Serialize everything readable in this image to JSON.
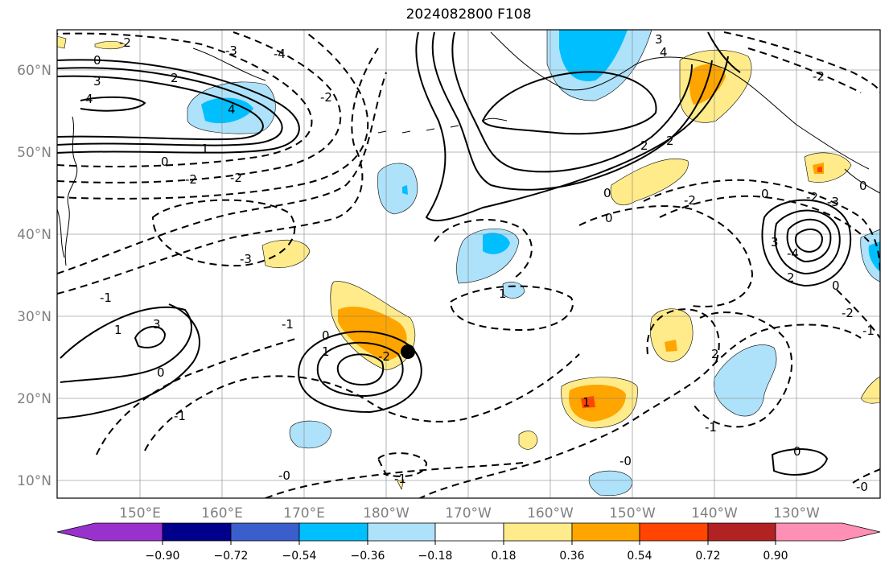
{
  "title": "2024082800 F108",
  "lat_labels": [
    "60°N",
    "50°N",
    "40°N",
    "30°N",
    "20°N",
    "10°N"
  ],
  "lon_labels": [
    "150°E",
    "160°E",
    "170°E",
    "180°W",
    "170°W",
    "160°W",
    "150°W",
    "140°W",
    "130°W"
  ],
  "colorbar": {
    "ticks": [
      "−0.90",
      "−0.72",
      "−0.54",
      "−0.36",
      "−0.18",
      "0.18",
      "0.36",
      "0.54",
      "0.72",
      "0.90"
    ],
    "colors": [
      "#9932cc",
      "#00008b",
      "#3a5fcd",
      "#00bfff",
      "#aee2fa",
      "#ffffff",
      "#ffeb8a",
      "#ffa500",
      "#ff4500",
      "#b22222",
      "#ff8fb4"
    ]
  },
  "contour_labels": [
    "-3",
    "-4",
    "-2",
    "0",
    "3",
    "4",
    "2",
    "-2",
    "4",
    "1",
    "0",
    "-2",
    "-2",
    "-3",
    "-1",
    "1",
    "3",
    "0",
    "-1",
    "0",
    "1",
    "-2",
    "-1",
    "-0",
    "-1",
    "1",
    "0",
    "0",
    "2",
    "2",
    "3",
    "4",
    "2",
    "3",
    "-2",
    "0",
    "-3",
    "-4",
    "-2",
    "0",
    "-0",
    "-1",
    "-2",
    "-1",
    "1",
    "0",
    "-0",
    "-2",
    "2",
    "0"
  ],
  "marker": {
    "label": "storm-position"
  }
}
